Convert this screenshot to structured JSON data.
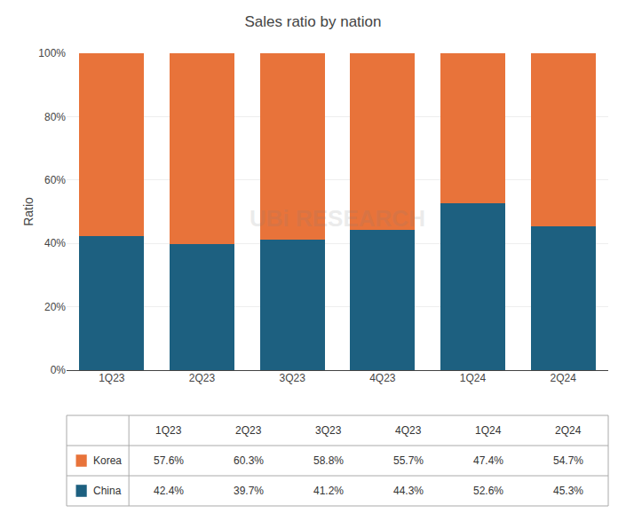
{
  "chart_data": {
    "type": "bar",
    "title": "Sales ratio by nation",
    "ylabel": "Ratio",
    "categories": [
      "1Q23",
      "2Q23",
      "3Q23",
      "4Q23",
      "1Q24",
      "2Q24"
    ],
    "stacked": true,
    "series": [
      {
        "name": "China",
        "color": "#1D6080",
        "values": [
          42.4,
          39.7,
          41.2,
          44.3,
          52.6,
          45.3
        ],
        "value_labels": [
          "42.4%",
          "39.7%",
          "41.2%",
          "44.3%",
          "52.6%",
          "45.3%"
        ]
      },
      {
        "name": "Korea",
        "color": "#E8733A",
        "values": [
          57.6,
          60.3,
          58.8,
          55.7,
          47.4,
          54.7
        ],
        "value_labels": [
          "57.6%",
          "60.3%",
          "58.8%",
          "55.7%",
          "47.4%",
          "54.7%"
        ]
      }
    ],
    "ylim": [
      0,
      100
    ],
    "yticks": [
      {
        "value": 0,
        "label": "0%"
      },
      {
        "value": 20,
        "label": "20%"
      },
      {
        "value": 40,
        "label": "40%"
      },
      {
        "value": 60,
        "label": "60%"
      },
      {
        "value": 80,
        "label": "80%"
      },
      {
        "value": 100,
        "label": "100%"
      }
    ],
    "grid": true,
    "annotations": [
      {
        "text": "UBi RESEARCH"
      }
    ]
  }
}
